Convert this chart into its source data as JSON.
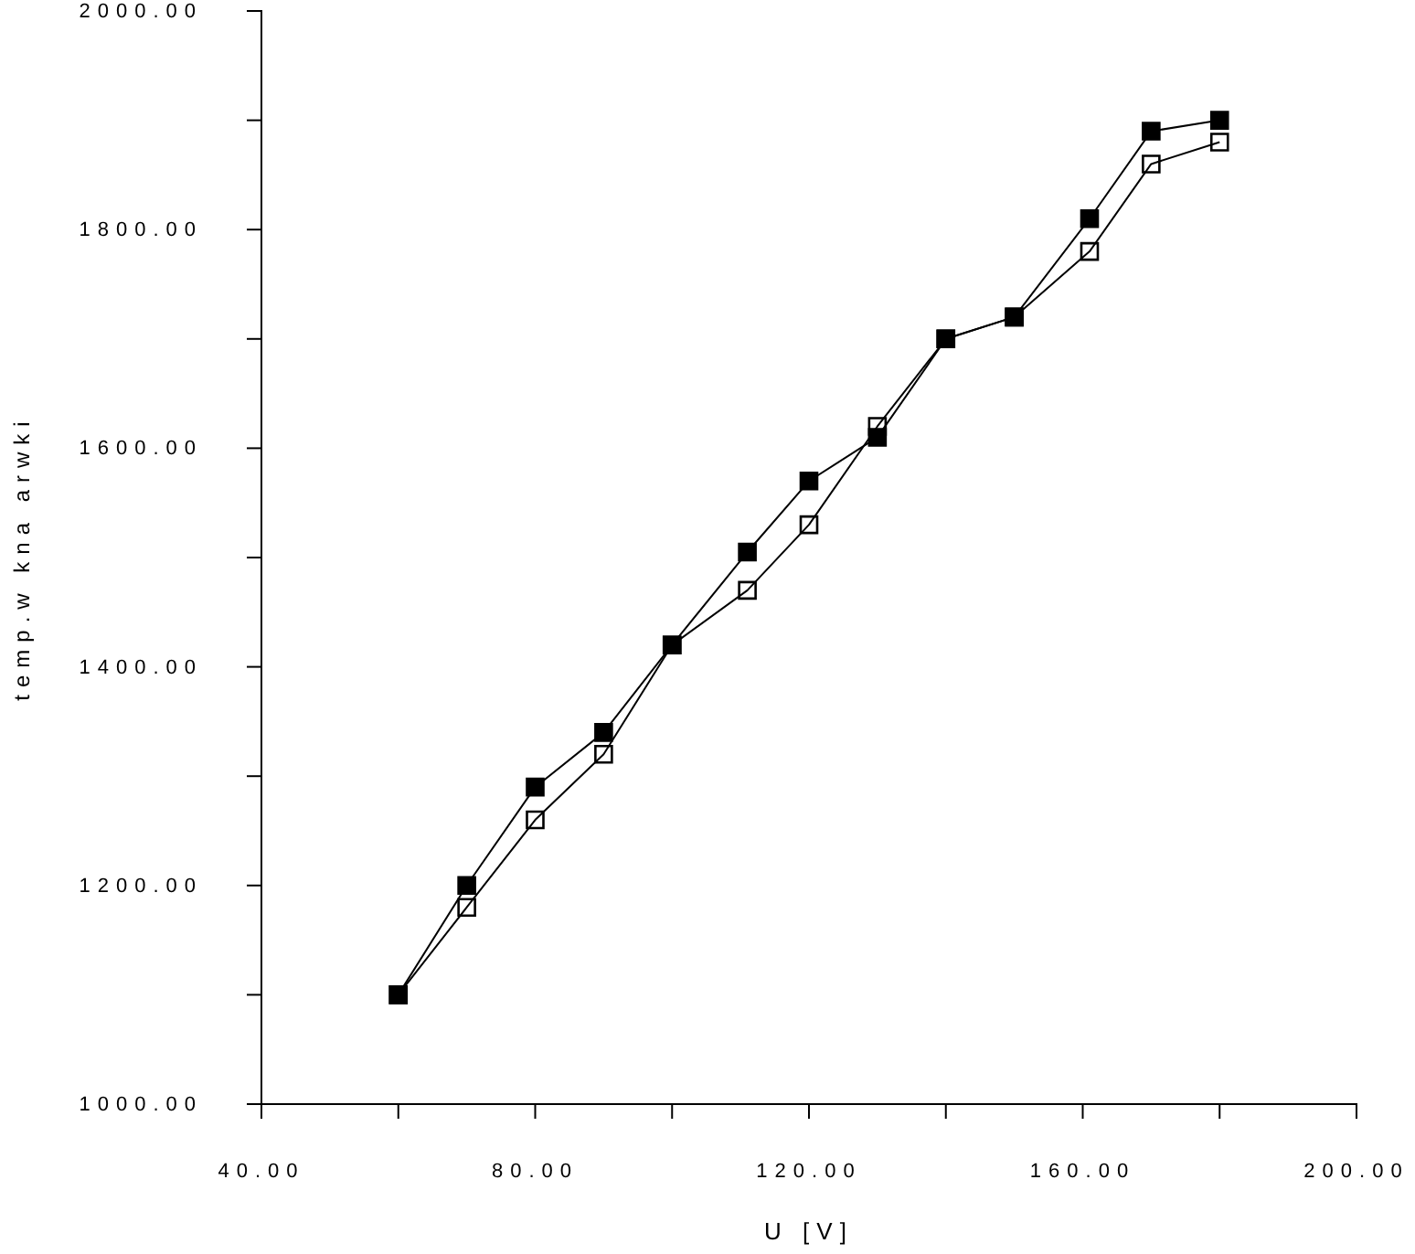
{
  "chart_data": {
    "type": "line",
    "xlabel": "U [V]",
    "ylabel": "temp.w kna arwki",
    "marker": "square",
    "grid": false,
    "xlim": [
      40,
      200
    ],
    "xticks": [
      {
        "value": 40,
        "label": "40.00"
      },
      {
        "value": 60,
        "label": null
      },
      {
        "value": 80,
        "label": "80.00"
      },
      {
        "value": 100,
        "label": null
      },
      {
        "value": 120,
        "label": "120.00"
      },
      {
        "value": 140,
        "label": null
      },
      {
        "value": 160,
        "label": "160.00"
      },
      {
        "value": 180,
        "label": null
      },
      {
        "value": 200,
        "label": "200.00"
      }
    ],
    "ylim": [
      1000,
      2000
    ],
    "yticks": [
      {
        "value": 1000,
        "label": "1000.00"
      },
      {
        "value": 1100,
        "label": null
      },
      {
        "value": 1200,
        "label": "1200.00"
      },
      {
        "value": 1300,
        "label": null
      },
      {
        "value": 1400,
        "label": "1400.00"
      },
      {
        "value": 1500,
        "label": null
      },
      {
        "value": 1600,
        "label": "1600.00"
      },
      {
        "value": 1700,
        "label": null
      },
      {
        "value": 1800,
        "label": "1800.00"
      },
      {
        "value": 1900,
        "label": null
      },
      {
        "value": 2000,
        "label": "2000.00"
      }
    ],
    "x": [
      60,
      70,
      80,
      90,
      100,
      111,
      120,
      130,
      140,
      150,
      161,
      170,
      180
    ],
    "series": [
      {
        "color": "#000000",
        "values": [
          1100,
          1200,
          1290,
          1340,
          1420,
          1505,
          1570,
          1610,
          1700,
          1720,
          1810,
          1890,
          1900
        ]
      },
      {
        "color": "#000000",
        "values": [
          1100,
          1180,
          1260,
          1320,
          1420,
          1470,
          1530,
          1620,
          1700,
          1720,
          1780,
          1860,
          1880
        ]
      }
    ]
  }
}
